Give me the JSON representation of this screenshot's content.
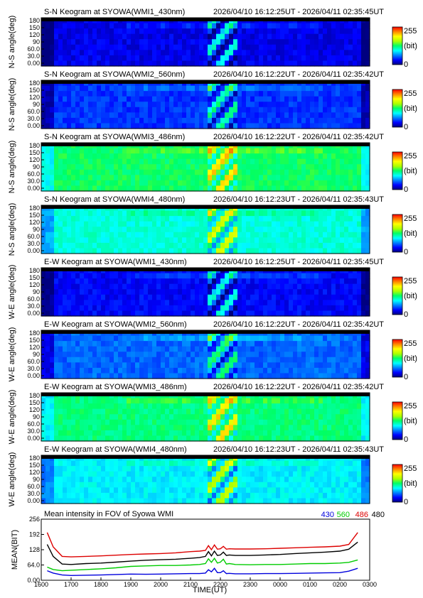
{
  "keogram_panels": [
    {
      "title": "S-N Keogram at SYOWA(WMI1_430nm)",
      "time_range": "2026/04/10 16:12:25UT - 2026/04/11 02:35:45UT",
      "ylabel": "N-S angle(deg)",
      "yticks": [
        "180",
        "150",
        "120",
        "90",
        "60.0",
        "30.0",
        "0.00"
      ],
      "colorbar_max": "255",
      "colorbar_unit": "(bit)",
      "colorbar_min": "0",
      "base_level": 0.1
    },
    {
      "title": "S-N Keogram at SYOWA(WMI2_560nm)",
      "time_range": "2026/04/10 16:12:22UT - 2026/04/11 02:35:42UT",
      "ylabel": "N-S angle(deg)",
      "yticks": [
        "180",
        "150",
        "120",
        "90",
        "60.0",
        "30.0",
        "0.00"
      ],
      "colorbar_max": "255",
      "colorbar_unit": "(bit)",
      "colorbar_min": "0",
      "base_level": 0.17
    },
    {
      "title": "S-N Keogram at SYOWA(WMI3_486nm)",
      "time_range": "2026/04/10 16:12:22UT - 2026/04/11 02:35:42UT",
      "ylabel": "N-S angle(deg)",
      "yticks": [
        "180",
        "150",
        "120",
        "90",
        "60.0",
        "30.0",
        "0.00"
      ],
      "colorbar_max": "255",
      "colorbar_unit": "(bit)",
      "colorbar_min": "0",
      "base_level": 0.5
    },
    {
      "title": "S-N Keogram at SYOWA(WMI4_480nm)",
      "time_range": "2026/04/10 16:12:23UT - 2026/04/11 02:35:43UT",
      "ylabel": "N-S angle(deg)",
      "yticks": [
        "180",
        "150",
        "120",
        "90",
        "60.0",
        "30.0",
        "0.00"
      ],
      "colorbar_max": "255",
      "colorbar_unit": "(bit)",
      "colorbar_min": "0",
      "base_level": 0.4
    },
    {
      "title": "E-W Keogram at SYOWA(WMI1_430nm)",
      "time_range": "2026/04/10 16:12:25UT - 2026/04/11 02:35:45UT",
      "ylabel": "W-E angle(deg)",
      "yticks": [
        "180",
        "150",
        "120",
        "90",
        "60.0",
        "30.0",
        "0.00"
      ],
      "colorbar_max": "255",
      "colorbar_unit": "(bit)",
      "colorbar_min": "0",
      "base_level": 0.12
    },
    {
      "title": "E-W Keogram at SYOWA(WMI2_560nm)",
      "time_range": "2026/04/10 16:12:22UT - 2026/04/11 02:35:42UT",
      "ylabel": "W-E angle(deg)",
      "yticks": [
        "180",
        "150",
        "120",
        "90",
        "60.0",
        "30.0",
        "0.00"
      ],
      "colorbar_max": "255",
      "colorbar_unit": "(bit)",
      "colorbar_min": "0",
      "base_level": 0.22
    },
    {
      "title": "E-W Keogram at SYOWA(WMI3_486nm)",
      "time_range": "2026/04/10 16:12:22UT - 2026/04/11 02:35:42UT",
      "ylabel": "W-E angle(deg)",
      "yticks": [
        "180",
        "150",
        "120",
        "90",
        "60.0",
        "30.0",
        "0.00"
      ],
      "colorbar_max": "255",
      "colorbar_unit": "(bit)",
      "colorbar_min": "0",
      "base_level": 0.48
    },
    {
      "title": "E-W Keogram at SYOWA(WMI4_480nm)",
      "time_range": "2026/04/10 16:12:23UT - 2026/04/11 02:35:43UT",
      "ylabel": "W-E angle(deg)",
      "yticks": [
        "180",
        "150",
        "120",
        "90",
        "60.0",
        "30.0",
        "0.00"
      ],
      "colorbar_max": "255",
      "colorbar_unit": "(bit)",
      "colorbar_min": "0",
      "base_level": 0.36
    }
  ],
  "chart_data": {
    "type": "line",
    "title": "Mean intensity in FOV of Syowa WMI",
    "xlabel": "TIME(UT)",
    "ylabel": "MEAN(BIT)",
    "xticks": [
      "1600",
      "1700",
      "1800",
      "1900",
      "2000",
      "2100",
      "2200",
      "2300",
      "0000",
      "0100",
      "0200",
      "0300"
    ],
    "yticks": [
      "0.00",
      "64.0",
      "128",
      "192",
      "256"
    ],
    "xlim": [
      16.0,
      27.0
    ],
    "ylim": [
      0,
      256
    ],
    "x": [
      16.2,
      16.4,
      16.7,
      17.0,
      17.5,
      18.0,
      18.5,
      19.0,
      19.5,
      20.0,
      20.5,
      21.0,
      21.3,
      21.5,
      21.6,
      21.7,
      21.8,
      21.9,
      22.0,
      22.1,
      22.2,
      22.3,
      22.5,
      23.0,
      23.5,
      24.0,
      24.5,
      25.0,
      25.5,
      26.0,
      26.3,
      26.6
    ],
    "series": [
      {
        "name": "430",
        "color": "#0000dd",
        "values": [
          40,
          30,
          22,
          20,
          21,
          22,
          24,
          26,
          25,
          26,
          27,
          28,
          28,
          30,
          44,
          35,
          50,
          32,
          32,
          40,
          28,
          29,
          27,
          27,
          28,
          28,
          29,
          30,
          31,
          32,
          38,
          50
        ]
      },
      {
        "name": "560",
        "color": "#00cc00",
        "values": [
          55,
          45,
          40,
          42,
          45,
          48,
          52,
          58,
          60,
          62,
          62,
          64,
          66,
          70,
          90,
          75,
          92,
          72,
          76,
          88,
          68,
          70,
          66,
          65,
          66,
          66,
          68,
          70,
          70,
          72,
          75,
          85
        ]
      },
      {
        "name": "486",
        "color": "#dd0000",
        "values": [
          200,
          140,
          100,
          98,
          100,
          102,
          105,
          108,
          110,
          112,
          115,
          120,
          122,
          125,
          145,
          128,
          148,
          130,
          132,
          142,
          130,
          132,
          131,
          131,
          132,
          134,
          136,
          138,
          140,
          143,
          150,
          200
        ]
      },
      {
        "name": "480",
        "color": "#000000",
        "values": [
          150,
          100,
          68,
          66,
          70,
          72,
          76,
          80,
          84,
          86,
          88,
          92,
          95,
          100,
          120,
          102,
          122,
          104,
          106,
          118,
          104,
          106,
          104,
          104,
          106,
          108,
          112,
          115,
          118,
          122,
          130,
          160
        ]
      }
    ]
  }
}
